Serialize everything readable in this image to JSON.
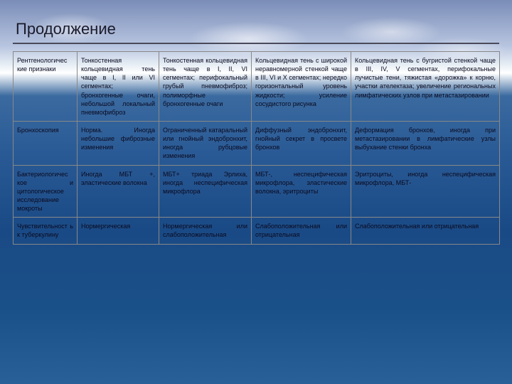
{
  "title": "Продолжение",
  "rows": [
    {
      "c1": "Рентгенологичес кие признаки",
      "c2": "Тонкостенная кольцевидная тень чаще в I, II или VI сегментах; бронхогенные очаги, небольшой локальный пневмофиброз",
      "c3": "Тонкостенная кольцевидная тень чаще в I, II, VI сегментах; перифокальный грубый пневмофиброз; полиморфные бронхогенные очаги",
      "c4": "Кольцевидная тень с широкой неравномерной стенкой чаще в III, VI и X сегментах; нередко горизонтальный уровень жидкости; усиление сосудистого рисунка",
      "c5": "Кольцевидная тень с бугристой стенкой чаще в III, IV, V сегментах, перифокальные лучистые тени, тяжистая «дорожка» к корню, участки ателектаза; увеличение региональных лимфатических узлов при метастазировании"
    },
    {
      "c1": "Бронхоскопия",
      "c2": "Норма. Иногда небольшие фиброзные изменения",
      "c3": "Ограниченный катаральный или гнойный эндобронхит, иногда рубцовые изменения",
      "c4": "Диффузный эндобронхит, гнойный секрет в просвете бронхов",
      "c5": "Деформация бронхов, иногда при метастазировании в лимфатические узлы выбухание стенки бронха"
    },
    {
      "c1": "Бактериологичес кое и цитологическое исследование мокроты",
      "c2": "Иногда МБТ +, эластические волокна",
      "c3": "МБТ+ триада Эрлиха, иногда неспецифическая микрофлора",
      "c4": "МБТ-, неспецифическая микрофлора, эластические волокна, эритроциты",
      "c5": "Эритроциты, иногда неспецифическая микрофлора, МБТ-"
    },
    {
      "c1": "Чувствительност ь к туберкулину",
      "c2": "Нормергическая",
      "c3": "Нормергическая или слабоположительная",
      "c4": "Слабоположительная или отрицательная",
      "c5": "Слабоположительная или отрицательная"
    }
  ]
}
